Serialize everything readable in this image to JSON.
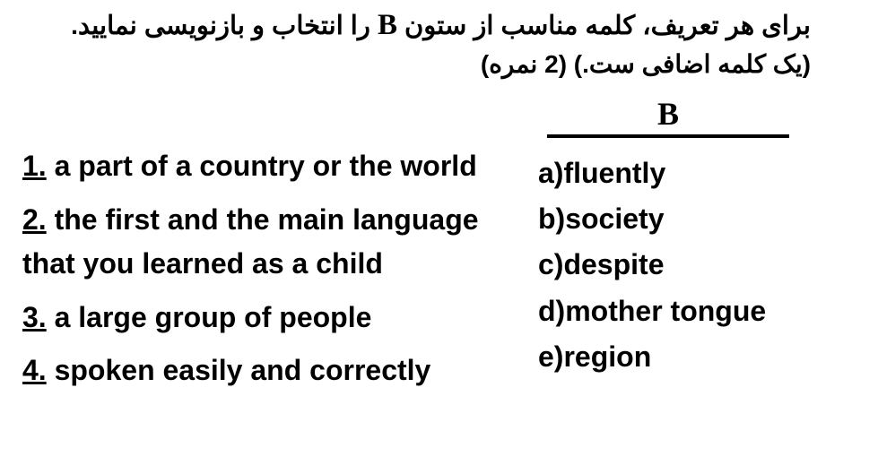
{
  "instruction": {
    "line1_prefix": "برای هر تعریف، کلمه مناسب از ستون ",
    "line1_bold_letter": "B",
    "line1_suffix": " را انتخاب و بازنویسی نمایید.",
    "line2": "(یک کلمه اضافی ست.) (2 نمره)"
  },
  "column_header": "B",
  "definitions": [
    {
      "num": "1.",
      "text": " a part of a country or the world"
    },
    {
      "num": "2.",
      "text": "  the first and the main language that you learned as a child"
    },
    {
      "num": "3.",
      "text": " a large group of people"
    },
    {
      "num": "4.",
      "text": " spoken easily and correctly"
    }
  ],
  "options": [
    {
      "label": "a)",
      "word": "fluently"
    },
    {
      "label": "b)",
      "word": "society"
    },
    {
      "label": "c)",
      "word": "despite"
    },
    {
      "label": "d)",
      "word": "mother tongue"
    },
    {
      "label": "e)",
      "word": "region"
    }
  ],
  "colors": {
    "text": "#000000",
    "background": "#ffffff"
  },
  "fonts": {
    "persian": "Tahoma",
    "english": "Comic Sans MS",
    "header_serif": "Times New Roman"
  }
}
